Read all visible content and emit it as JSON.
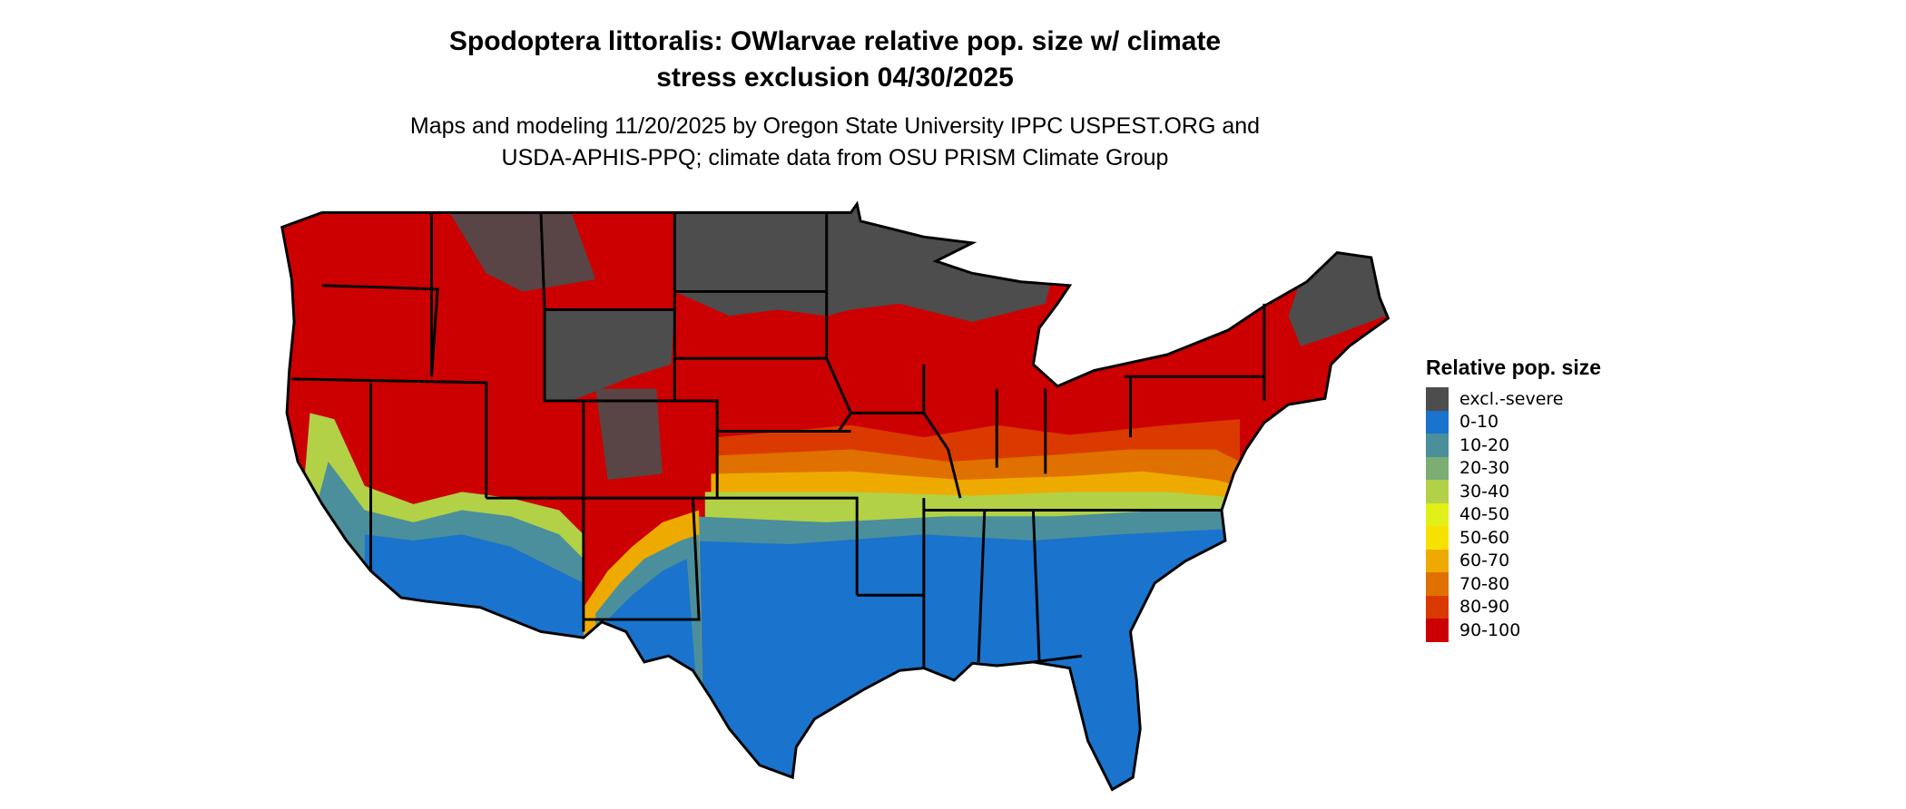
{
  "title": {
    "line1": "Spodoptera littoralis: OWlarvae relative pop. size w/ climate",
    "line2": "stress exclusion 04/30/2025"
  },
  "subtitle": {
    "line1": "Maps and modeling 11/20/2025 by Oregon State University IPPC USPEST.ORG and",
    "line2": "USDA-APHIS-PPQ; climate data from OSU PRISM Climate Group"
  },
  "legend": {
    "title": "Relative pop. size",
    "items": [
      {
        "label": "excl.-severe",
        "color": "#4d4d4d"
      },
      {
        "label": "0-10",
        "color": "#1a73cc"
      },
      {
        "label": "10-20",
        "color": "#4a8f9b"
      },
      {
        "label": "20-30",
        "color": "#7aae72"
      },
      {
        "label": "30-40",
        "color": "#b2d146"
      },
      {
        "label": "40-50",
        "color": "#e3f018"
      },
      {
        "label": "50-60",
        "color": "#f8e100"
      },
      {
        "label": "60-70",
        "color": "#eeaa00"
      },
      {
        "label": "70-80",
        "color": "#e07000"
      },
      {
        "label": "80-90",
        "color": "#da3a00"
      },
      {
        "label": "90-100",
        "color": "#cc0000"
      }
    ]
  },
  "map": {
    "region": "conterminous United States",
    "border_color": "#000000"
  }
}
